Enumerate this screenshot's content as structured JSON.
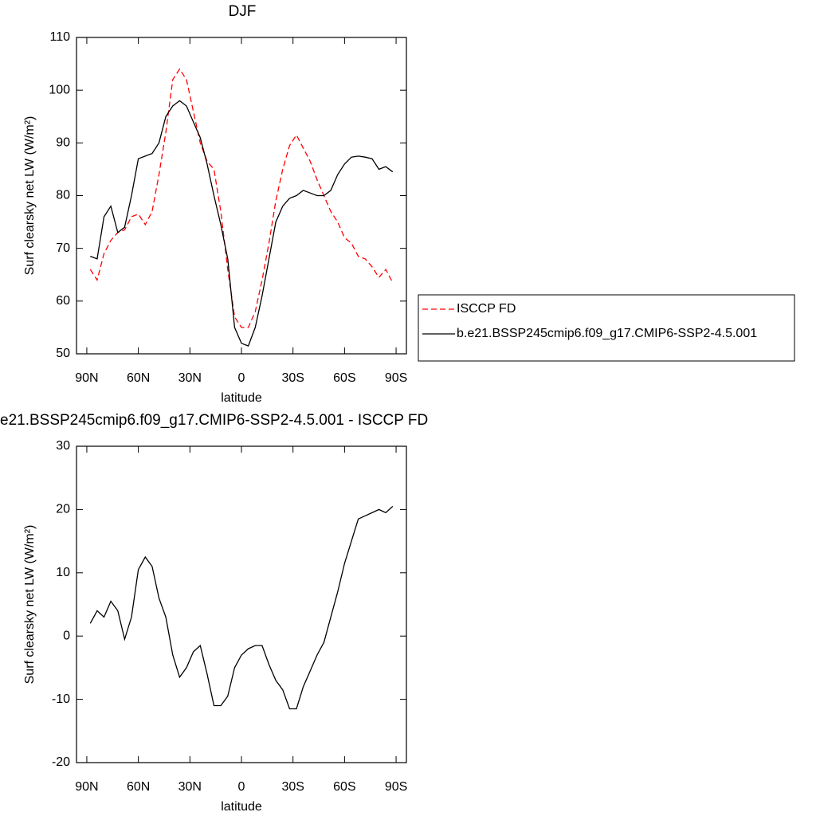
{
  "chart_data": [
    {
      "type": "line",
      "title": "DJF",
      "x_label": "latitude",
      "y_label": "Surf clearsky net LW (W/m²)",
      "x": [
        88,
        84,
        80,
        76,
        72,
        68,
        64,
        60,
        56,
        52,
        48,
        44,
        40,
        36,
        32,
        28,
        24,
        20,
        16,
        12,
        8,
        4,
        0,
        -4,
        -8,
        -12,
        -16,
        -20,
        -24,
        -28,
        -32,
        -36,
        -40,
        -44,
        -48,
        -52,
        -56,
        -60,
        -64,
        -68,
        -72,
        -76,
        -80,
        -84,
        -88
      ],
      "series": [
        {
          "name": "ISCCP FD",
          "color": "#ff0000",
          "line_style": "dashed",
          "values": [
            66,
            64,
            69,
            71.5,
            73,
            73.5,
            76,
            76.5,
            74.5,
            77,
            84,
            92,
            102,
            104,
            102,
            96,
            90,
            86.5,
            85,
            77,
            66,
            57,
            55,
            55,
            58,
            64,
            71,
            79,
            85,
            89.5,
            91.5,
            89,
            86.5,
            83,
            80,
            77,
            75,
            72,
            71,
            68.5,
            68,
            66.5,
            64.5,
            66,
            63.5
          ]
        },
        {
          "name": "b.e21.BSSP245cmip6.f09_g17.CMIP6-SSP2-4.5.001",
          "color": "#000000",
          "line_style": "solid",
          "values": [
            68.5,
            68,
            76,
            78,
            73,
            74,
            80,
            87,
            87.5,
            88,
            90,
            95,
            97,
            98,
            97,
            94,
            91,
            86,
            80,
            74.5,
            68,
            55,
            52,
            51.5,
            55,
            61,
            68,
            75,
            78,
            79.5,
            80,
            81,
            80.5,
            80,
            80,
            81,
            84,
            86,
            87.3,
            87.5,
            87.3,
            87,
            85,
            85.5,
            84.5
          ]
        }
      ],
      "xlim": [
        96,
        -96
      ],
      "xticks": [
        {
          "value": 90,
          "label": "90N"
        },
        {
          "value": 60,
          "label": "60N"
        },
        {
          "value": 30,
          "label": "30N"
        },
        0,
        {
          "value": -30,
          "label": "30S"
        },
        {
          "value": -60,
          "label": "60S"
        },
        {
          "value": -90,
          "label": "90S"
        }
      ],
      "ylim": [
        50,
        110
      ],
      "yticks": [
        50,
        60,
        70,
        80,
        90,
        100,
        110
      ],
      "legend": "right"
    },
    {
      "type": "line",
      "title": "e21.BSSP245cmip6.f09_g17.CMIP6-SSP2-4.5.001 - ISCCP FD",
      "x_label": "latitude",
      "y_label": "Surf clearsky net LW (W/m²)",
      "x": [
        88,
        84,
        80,
        76,
        72,
        68,
        64,
        60,
        56,
        52,
        48,
        44,
        40,
        36,
        32,
        28,
        24,
        20,
        16,
        12,
        8,
        4,
        0,
        -4,
        -8,
        -12,
        -16,
        -20,
        -24,
        -28,
        -32,
        -36,
        -40,
        -44,
        -48,
        -52,
        -56,
        -60,
        -64,
        -68,
        -72,
        -76,
        -80,
        -84,
        -88
      ],
      "series": [
        {
          "color": "#000000",
          "line_style": "solid",
          "values": [
            2,
            4,
            3,
            5.5,
            4,
            -0.5,
            3,
            10.5,
            12.5,
            11,
            6,
            3,
            -3,
            -6.5,
            -5,
            -2.5,
            -1.5,
            -6,
            -11,
            -11,
            -9.5,
            -5,
            -3,
            -2,
            -1.5,
            -1.5,
            -4.5,
            -7,
            -8.5,
            -11.5,
            -11.5,
            -8,
            -5.5,
            -3,
            -1,
            3,
            7,
            11.5,
            15,
            18.5,
            19,
            19.5,
            20,
            19.5,
            20.5
          ]
        }
      ],
      "xlim": [
        96,
        -96
      ],
      "xticks": [
        {
          "value": 90,
          "label": "90N"
        },
        {
          "value": 60,
          "label": "60N"
        },
        {
          "value": 30,
          "label": "30N"
        },
        0,
        {
          "value": -30,
          "label": "30S"
        },
        {
          "value": -60,
          "label": "60S"
        },
        {
          "value": -90,
          "label": "90S"
        }
      ],
      "ylim": [
        -20,
        30
      ],
      "yticks": [
        -20,
        -10,
        0,
        10,
        20,
        30
      ]
    }
  ]
}
